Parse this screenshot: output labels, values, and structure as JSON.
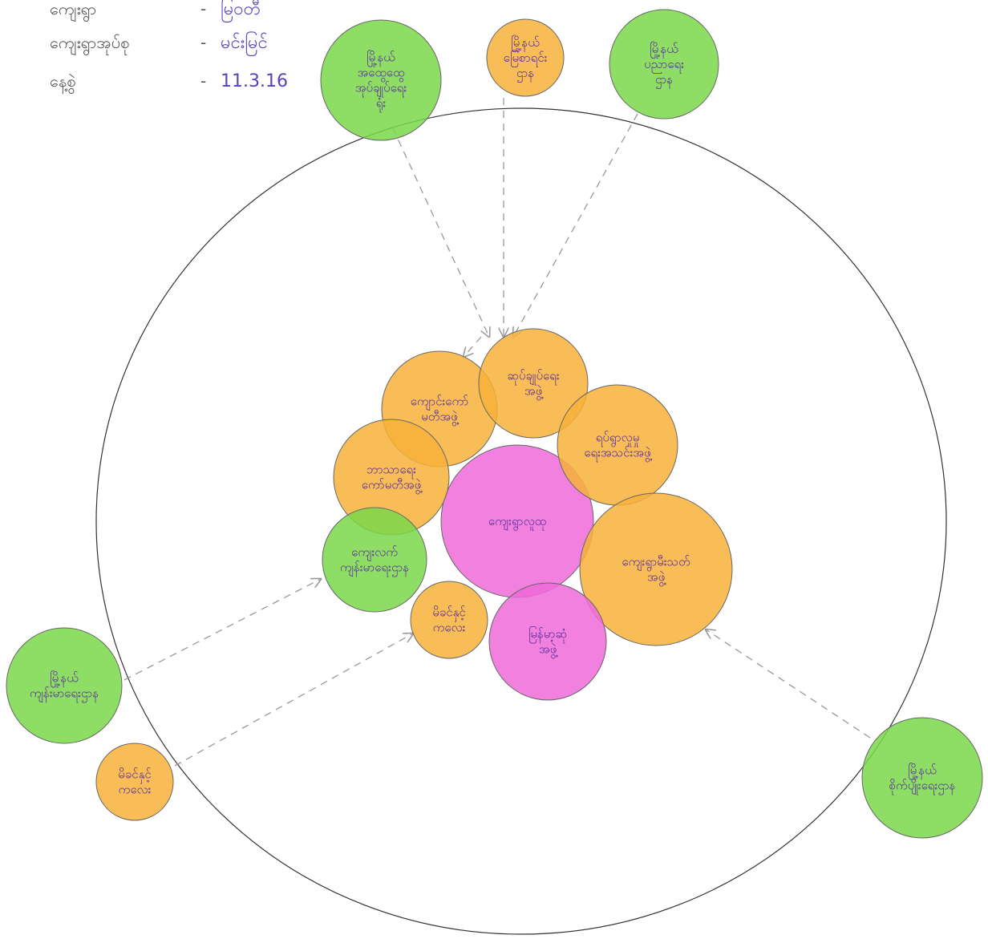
{
  "header": {
    "rows": [
      {
        "label": "ကျေးရွာ",
        "value": "မြဝတီ"
      },
      {
        "label": "ကျေးရွာအုပ်စု",
        "value": "မင်းမြင်"
      },
      {
        "label": "နေ့စွဲ",
        "value": "11.3.16"
      }
    ]
  },
  "nodes": [
    {
      "lines": [
        "မြို့နယ်",
        "အထွေထွေ",
        "အုပ်ချုပ်ရေး",
        "ရုံး"
      ]
    },
    {
      "lines": [
        "မြို့နယ်",
        "မြေစာရင်း",
        "ဌာန"
      ]
    },
    {
      "lines": [
        "မြို့နယ်",
        "ပညာရေး",
        "ဌာန"
      ]
    },
    {
      "lines": [
        "ကျေးရွာလူထု"
      ]
    },
    {
      "lines": [
        "ကျောင်းကော်",
        "မတီအဖွဲ့"
      ]
    },
    {
      "lines": [
        "ဆုပ်ချုပ်ရေး",
        "အဖွဲ့"
      ]
    },
    {
      "lines": [
        "ရပ်ရွာလူမှု",
        "ရေးအသင်းအဖွဲ့"
      ]
    },
    {
      "lines": [
        "ဘာသာရေး",
        "ကော်မတီအဖွဲ့"
      ]
    },
    {
      "lines": [
        "ကျေးရွာမီးသတ်",
        "အဖွဲ့"
      ]
    },
    {
      "lines": [
        "ကျေးလက်",
        "ကျန်းမာရေးဌာန"
      ]
    },
    {
      "lines": [
        "မိခင်နှင့်",
        "ကလေး"
      ]
    },
    {
      "lines": [
        "မြန်မာ့ဆုံ",
        "အဖွဲ့"
      ]
    },
    {
      "lines": [
        "မြို့နယ်",
        "ကျန်းမာရေးဌာန"
      ]
    },
    {
      "lines": [
        "မိခင်နှင့်",
        "ကလေး"
      ]
    },
    {
      "lines": [
        "မြို့နယ်",
        "စိုက်ပျိုးရေးဌာန"
      ]
    }
  ]
}
